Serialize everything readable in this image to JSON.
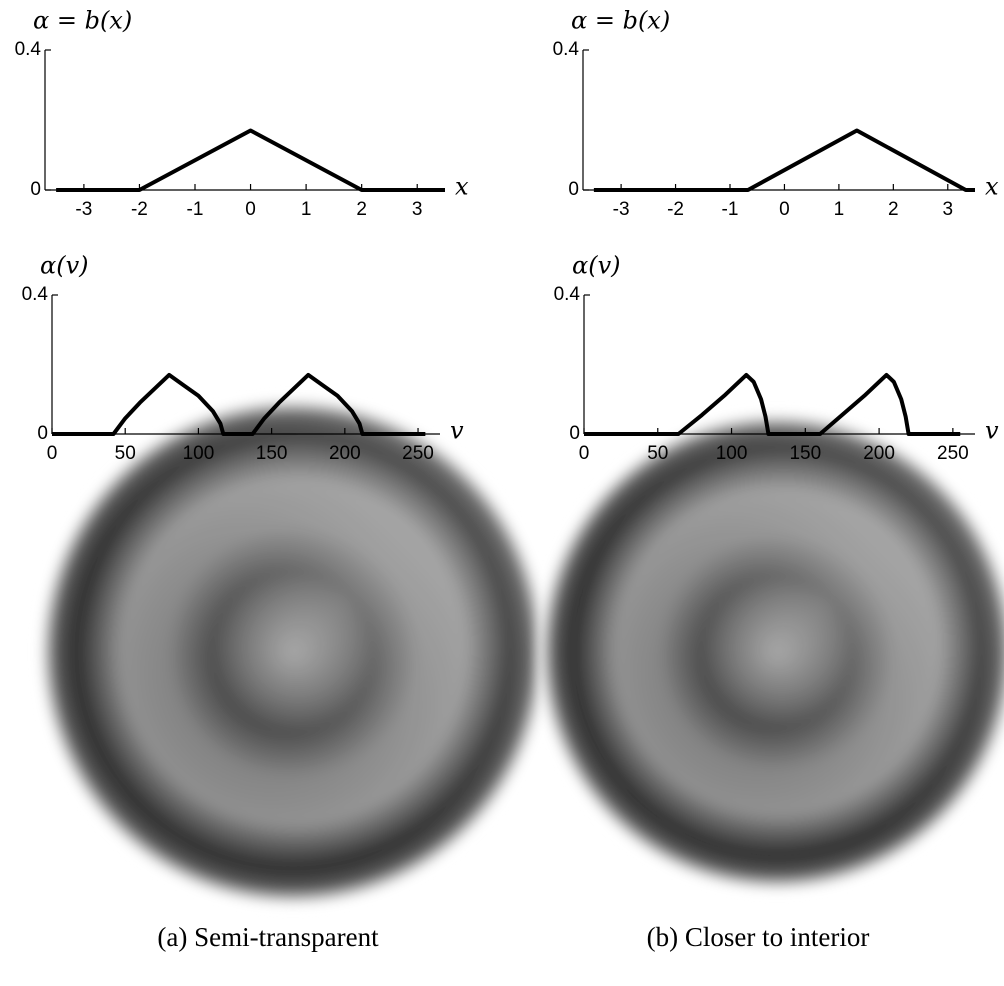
{
  "chart_data": [
    {
      "type": "line",
      "ylabel": "α = b(x)",
      "xlabel": "x",
      "x": [
        -3.5,
        -2,
        0,
        2,
        3.5
      ],
      "values": [
        0,
        0,
        0.17,
        0,
        0
      ],
      "color": "#000000",
      "xlim": [
        -3.7,
        3.5
      ],
      "ylim": [
        0,
        0.4
      ],
      "xticks": [
        -3,
        -2,
        -1,
        0,
        1,
        2,
        3
      ],
      "yticks": [
        0,
        0.4
      ]
    },
    {
      "type": "line",
      "ylabel": "α = b(x)",
      "xlabel": "x",
      "x": [
        -3.5,
        -0.67,
        1.33,
        3.33,
        3.5
      ],
      "values": [
        0,
        0,
        0.17,
        0,
        0
      ],
      "color": "#000000",
      "xlim": [
        -3.7,
        3.5
      ],
      "ylim": [
        0,
        0.4
      ],
      "xticks": [
        -3,
        -2,
        -1,
        0,
        1,
        2,
        3
      ],
      "yticks": [
        0,
        0.4
      ]
    },
    {
      "type": "line",
      "ylabel": "α(v)",
      "xlabel": "v",
      "x": [
        0,
        42,
        50,
        60,
        70,
        80,
        90,
        100,
        110,
        115,
        117,
        137,
        145,
        155,
        165,
        175,
        185,
        195,
        205,
        210,
        212,
        255
      ],
      "values": [
        0,
        0,
        0.045,
        0.09,
        0.13,
        0.17,
        0.14,
        0.11,
        0.065,
        0.03,
        0,
        0,
        0.045,
        0.09,
        0.13,
        0.17,
        0.14,
        0.11,
        0.065,
        0.03,
        0,
        0
      ],
      "color": "#000000",
      "xlim": [
        0,
        265
      ],
      "ylim": [
        0,
        0.4
      ],
      "xticks": [
        0,
        50,
        100,
        150,
        200,
        250
      ],
      "yticks": [
        0,
        0.4
      ]
    },
    {
      "type": "line",
      "ylabel": "α(v)",
      "xlabel": "v",
      "x": [
        0,
        64,
        80,
        95,
        110,
        115,
        120,
        123,
        125,
        160,
        175,
        190,
        205,
        210,
        215,
        218,
        220,
        255
      ],
      "values": [
        0,
        0,
        0.055,
        0.11,
        0.17,
        0.15,
        0.1,
        0.05,
        0,
        0,
        0.055,
        0.11,
        0.17,
        0.15,
        0.1,
        0.05,
        0,
        0
      ],
      "color": "#000000",
      "xlim": [
        0,
        265
      ],
      "ylim": [
        0,
        0.4
      ],
      "xticks": [
        0,
        50,
        100,
        150,
        200,
        250
      ],
      "yticks": [
        0,
        0.4
      ]
    }
  ],
  "captions": [
    "(a) Semi-transparent",
    "(b) Closer to interior"
  ]
}
